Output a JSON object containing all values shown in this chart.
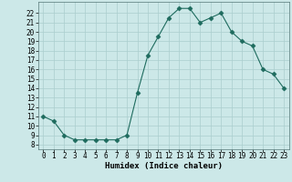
{
  "x": [
    0,
    1,
    2,
    3,
    4,
    5,
    6,
    7,
    8,
    9,
    10,
    11,
    12,
    13,
    14,
    15,
    16,
    17,
    18,
    19,
    20,
    21,
    22,
    23
  ],
  "y": [
    11,
    10.5,
    9,
    8.5,
    8.5,
    8.5,
    8.5,
    8.5,
    9,
    13.5,
    17.5,
    19.5,
    21.5,
    22.5,
    22.5,
    21,
    21.5,
    22,
    20,
    19,
    18.5,
    16,
    15.5,
    14
  ],
  "xlabel": "Humidex (Indice chaleur)",
  "xlim": [
    -0.5,
    23.5
  ],
  "ylim": [
    7.5,
    23.2
  ],
  "yticks": [
    8,
    9,
    10,
    11,
    12,
    13,
    14,
    15,
    16,
    17,
    18,
    19,
    20,
    21,
    22
  ],
  "xticks": [
    0,
    1,
    2,
    3,
    4,
    5,
    6,
    7,
    8,
    9,
    10,
    11,
    12,
    13,
    14,
    15,
    16,
    17,
    18,
    19,
    20,
    21,
    22,
    23
  ],
  "line_color": "#1e6b5e",
  "marker": "D",
  "marker_size": 2.5,
  "bg_color": "#cce8e8",
  "grid_color": "#aacece",
  "tick_fontsize": 5.5,
  "label_fontsize": 6.5
}
